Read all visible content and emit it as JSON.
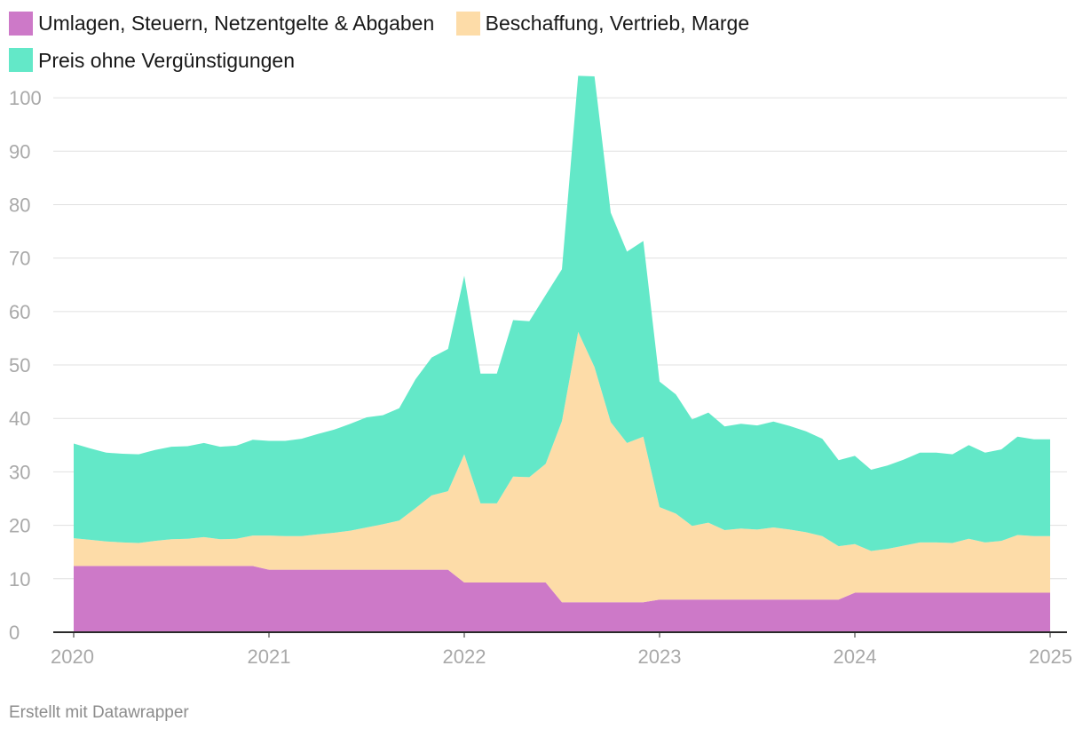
{
  "colors": {
    "umlagen": "#cd79c8",
    "beschaffung": "#fddca8",
    "preis": "#63e8c8",
    "grid": "#e0e0e0",
    "axis": "#2a2a2a",
    "tick": "#a9a9a9"
  },
  "footer": "Erstellt mit Datawrapper",
  "chart_data": {
    "type": "area",
    "stacked": true,
    "grid": true,
    "legend_position": "top-left",
    "ylim": [
      0,
      104
    ],
    "xlim": [
      2020,
      2025
    ],
    "yticks": [
      0,
      10,
      20,
      30,
      40,
      50,
      60,
      70,
      80,
      90,
      100
    ],
    "xticks": [
      "2020",
      "2021",
      "2022",
      "2023",
      "2024",
      "2025"
    ],
    "x": [
      2020.0,
      2020.0833,
      2020.1667,
      2020.25,
      2020.3333,
      2020.4167,
      2020.5,
      2020.5833,
      2020.6667,
      2020.75,
      2020.8333,
      2020.9167,
      2021.0,
      2021.0833,
      2021.1667,
      2021.25,
      2021.3333,
      2021.4167,
      2021.5,
      2021.5833,
      2021.6667,
      2021.75,
      2021.8333,
      2021.9167,
      2022.0,
      2022.0833,
      2022.1667,
      2022.25,
      2022.3333,
      2022.4167,
      2022.5,
      2022.5833,
      2022.6667,
      2022.75,
      2022.8333,
      2022.9167,
      2023.0,
      2023.0833,
      2023.1667,
      2023.25,
      2023.3333,
      2023.4167,
      2023.5,
      2023.5833,
      2023.6667,
      2023.75,
      2023.8333,
      2023.9167,
      2024.0,
      2024.0833,
      2024.1667,
      2024.25,
      2024.3333,
      2024.4167,
      2024.5,
      2024.5833,
      2024.6667,
      2024.75,
      2024.8333,
      2024.9167,
      2025.0
    ],
    "series": [
      {
        "name": "Umlagen, Steuern, Netzentgelte & Abgaben",
        "color_key": "umlagen",
        "values": [
          12.4,
          12.4,
          12.4,
          12.4,
          12.4,
          12.4,
          12.4,
          12.4,
          12.4,
          12.4,
          12.4,
          12.4,
          11.7,
          11.7,
          11.7,
          11.7,
          11.7,
          11.7,
          11.7,
          11.7,
          11.7,
          11.7,
          11.7,
          11.7,
          9.3,
          9.3,
          9.3,
          9.3,
          9.3,
          9.3,
          5.6,
          5.6,
          5.6,
          5.6,
          5.6,
          5.6,
          6.1,
          6.1,
          6.1,
          6.1,
          6.1,
          6.1,
          6.1,
          6.1,
          6.1,
          6.1,
          6.1,
          6.1,
          7.4,
          7.4,
          7.4,
          7.4,
          7.4,
          7.4,
          7.4,
          7.4,
          7.4,
          7.4,
          7.4,
          7.4,
          7.4
        ]
      },
      {
        "name": "Beschaffung, Vertrieb, Marge",
        "color_key": "beschaffung",
        "values": [
          5.2,
          4.9,
          4.6,
          4.4,
          4.3,
          4.7,
          5.0,
          5.1,
          5.4,
          5.0,
          5.1,
          5.7,
          6.4,
          6.3,
          6.3,
          6.6,
          6.9,
          7.3,
          7.9,
          8.5,
          9.2,
          11.5,
          13.9,
          14.7,
          24.0,
          14.8,
          14.8,
          19.8,
          19.7,
          22.2,
          33.9,
          50.6,
          44.0,
          33.7,
          29.8,
          31.0,
          17.3,
          16.1,
          13.8,
          14.4,
          13.0,
          13.3,
          13.1,
          13.5,
          13.1,
          12.6,
          11.9,
          10.0,
          9.1,
          7.8,
          8.2,
          8.8,
          9.4,
          9.4,
          9.3,
          10.1,
          9.4,
          9.7,
          10.8,
          10.6,
          10.6
        ]
      },
      {
        "name": "Preis ohne Vergünstigungen",
        "color_key": "preis",
        "values": [
          17.7,
          17.1,
          16.6,
          16.6,
          16.6,
          17.0,
          17.3,
          17.3,
          17.6,
          17.3,
          17.4,
          17.9,
          17.7,
          17.8,
          18.2,
          18.8,
          19.3,
          20.0,
          20.6,
          20.4,
          21.0,
          24.1,
          25.8,
          26.6,
          33.4,
          24.3,
          24.3,
          29.3,
          29.2,
          31.6,
          28.4,
          47.9,
          54.4,
          39.2,
          35.8,
          36.6,
          23.5,
          22.3,
          19.9,
          20.6,
          19.4,
          19.6,
          19.5,
          19.8,
          19.4,
          18.9,
          18.2,
          16.1,
          16.5,
          15.2,
          15.6,
          16.1,
          16.8,
          16.8,
          16.6,
          17.5,
          16.8,
          17.1,
          18.4,
          18.1,
          18.1
        ]
      }
    ]
  }
}
